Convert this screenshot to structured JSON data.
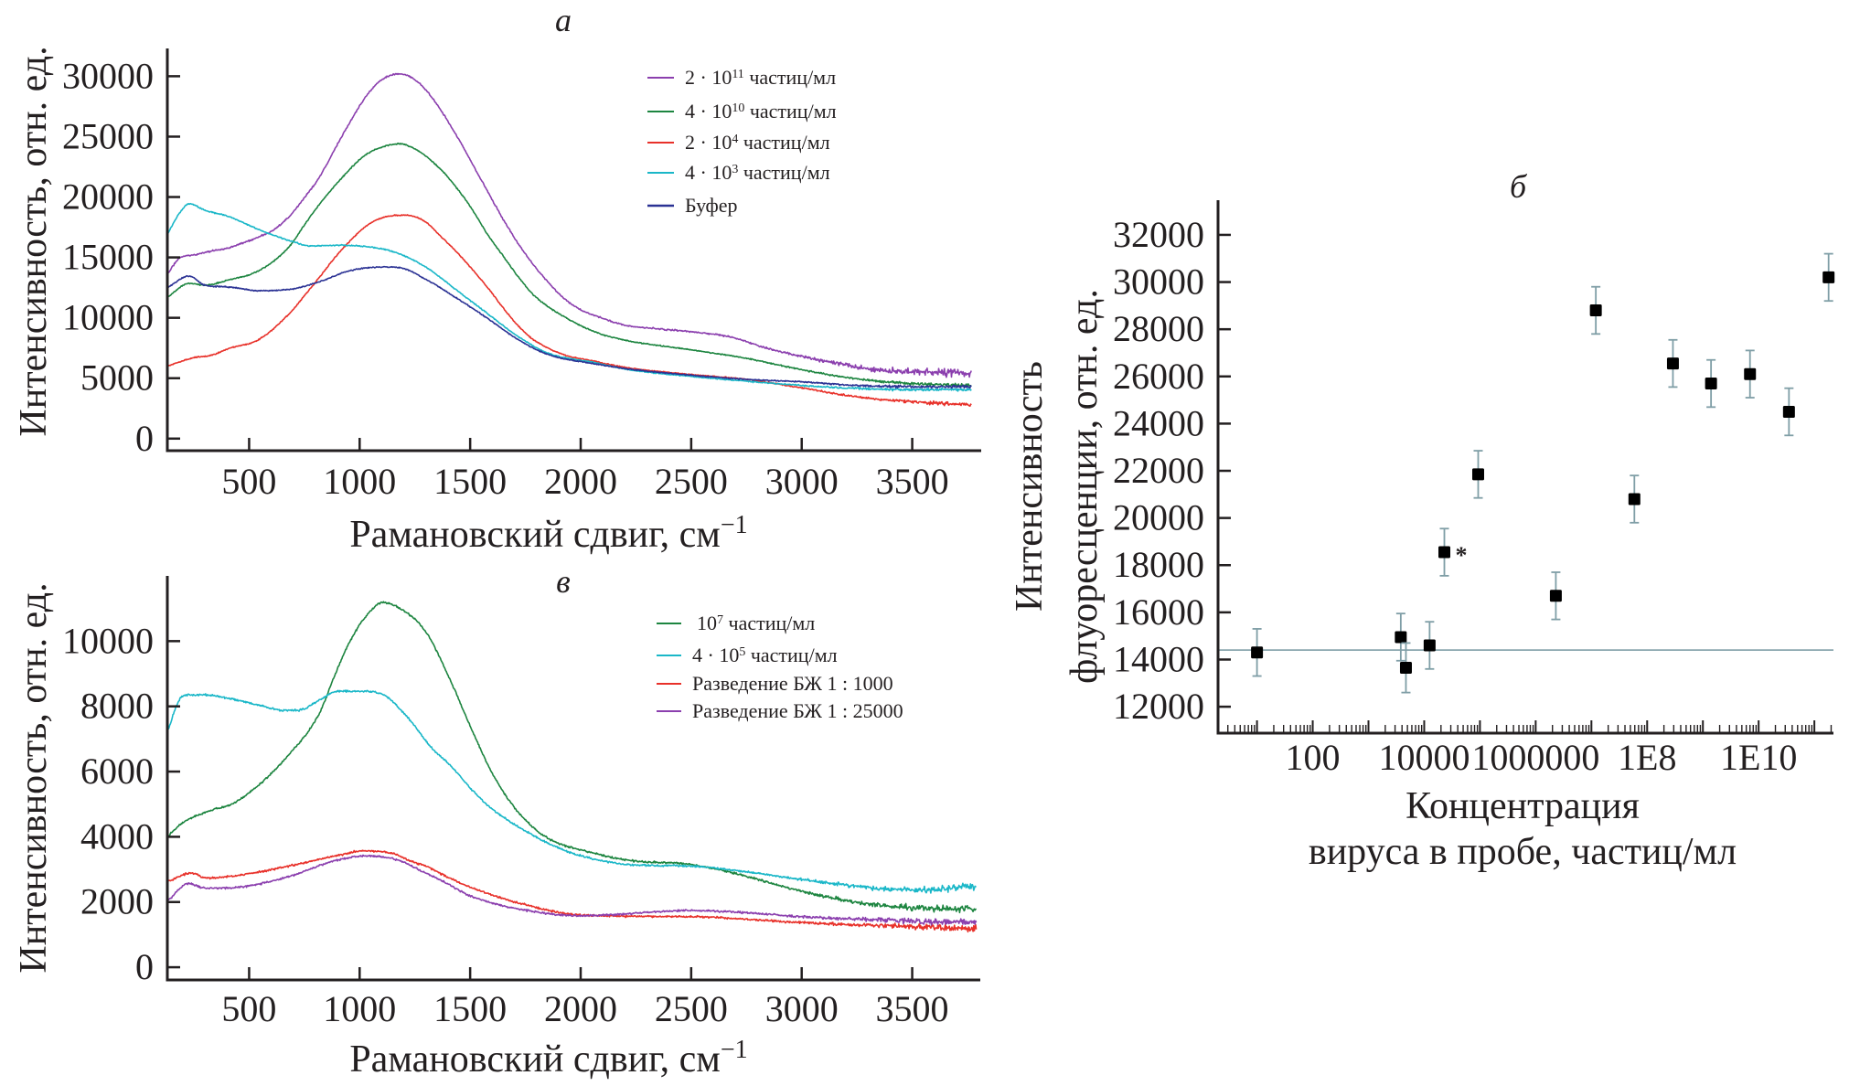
{
  "chart_data": [
    {
      "panel": "а",
      "type": "line",
      "title": "а",
      "xlabel": "Рамановский сдвиг, см",
      "xlabel_superscript": "−1",
      "ylabel": "Интенсивность, отн. ед.",
      "xlim": [
        130,
        3812
      ],
      "ylim": [
        -1000,
        32300
      ],
      "xticks": [
        500,
        1000,
        1500,
        2000,
        2500,
        3000,
        3500
      ],
      "yticks": [
        0,
        5000,
        10000,
        15000,
        20000,
        25000,
        30000
      ],
      "grid": false,
      "legend_position": "top-right",
      "series": [
        {
          "name": "2 · 10¹¹ частиц/мл",
          "legend": {
            "base": "2 · 10",
            "sup": "11",
            "suffix": " частиц/мл"
          },
          "color": "#8b3fae",
          "x": [
            130,
            190,
            250,
            320,
            406,
            544,
            613,
            682,
            751,
            820,
            889,
            958,
            1027,
            1096,
            1180,
            1262,
            1345,
            1441,
            1510,
            1579,
            1648,
            1717,
            1786,
            1855,
            1924,
            1993,
            2062,
            2200,
            2340,
            2500,
            2680,
            2820,
            3000,
            3170,
            3300,
            3500,
            3770
          ],
          "y": [
            13600,
            15000,
            15200,
            15500,
            15800,
            16700,
            17300,
            18400,
            19950,
            21700,
            24000,
            26250,
            28300,
            29650,
            30200,
            29550,
            27800,
            25000,
            22750,
            20450,
            18200,
            16150,
            14400,
            12900,
            11600,
            10750,
            10200,
            9400,
            9100,
            8850,
            8400,
            7600,
            6800,
            6200,
            5750,
            5550,
            5450
          ]
        },
        {
          "name": "4 · 10¹⁰ частиц/мл",
          "legend": {
            "base": "4 · 10",
            "sup": "10",
            "suffix": " частиц/мл"
          },
          "color": "#1d8540",
          "x": [
            130,
            230,
            300,
            406,
            544,
            682,
            751,
            820,
            889,
            958,
            1027,
            1096,
            1180,
            1262,
            1372,
            1441,
            1510,
            1579,
            1648,
            1717,
            1786,
            1924,
            2062,
            2200,
            2500,
            2750,
            3000,
            3250,
            3500,
            3770
          ],
          "y": [
            11700,
            12850,
            12700,
            13130,
            13900,
            15900,
            17700,
            19450,
            20950,
            22350,
            23500,
            24100,
            24400,
            23850,
            22200,
            20700,
            18950,
            16900,
            15150,
            13400,
            11900,
            10100,
            8850,
            8150,
            7350,
            6650,
            5700,
            4950,
            4550,
            4400
          ]
        },
        {
          "name": "2 · 10⁴ частиц/мл",
          "legend": {
            "base": "2 · 10",
            "sup": "4",
            "suffix": " частиц/мл"
          },
          "color": "#e8312a",
          "x": [
            130,
            250,
            330,
            406,
            544,
            682,
            751,
            820,
            889,
            958,
            1027,
            1096,
            1207,
            1289,
            1372,
            1441,
            1510,
            1579,
            1648,
            1717,
            1786,
            1924,
            2062,
            2200,
            2500,
            2750,
            3000,
            3250,
            3500,
            3770
          ],
          "y": [
            6000,
            6700,
            6900,
            7450,
            8200,
            10350,
            11850,
            13400,
            15000,
            16400,
            17550,
            18250,
            18500,
            18050,
            16650,
            15400,
            14000,
            12500,
            10850,
            9350,
            8200,
            6950,
            6400,
            5900,
            5300,
            4900,
            4200,
            3450,
            3050,
            2800
          ]
        },
        {
          "name": "4 · 10³ частиц/мл",
          "legend": {
            "base": "4 · 10",
            "sup": "3",
            "suffix": " частиц/мл"
          },
          "color": "#1ab7c8",
          "x": [
            130,
            190,
            230,
            300,
            406,
            544,
            682,
            779,
            889,
            1027,
            1165,
            1303,
            1441,
            1579,
            1717,
            1855,
            2062,
            2200,
            2500,
            2750,
            3000,
            3250,
            3500,
            3770
          ],
          "y": [
            16900,
            18800,
            19450,
            18900,
            18400,
            17300,
            16400,
            15950,
            16000,
            15900,
            15400,
            14150,
            12250,
            10350,
            8450,
            7050,
            6300,
            5750,
            5150,
            4750,
            4400,
            4150,
            4050,
            4050
          ]
        },
        {
          "name": "Буфер",
          "legend": {
            "base": "Буфер",
            "sup": "",
            "suffix": ""
          },
          "color": "#2b3294",
          "x": [
            130,
            229,
            300,
            406,
            544,
            682,
            820,
            958,
            1096,
            1179,
            1303,
            1441,
            1579,
            1717,
            1855,
            2062,
            2200,
            2500,
            2750,
            3000,
            3250,
            3500,
            3770
          ],
          "y": [
            12500,
            13450,
            12700,
            12550,
            12250,
            12350,
            13000,
            13900,
            14200,
            14150,
            13150,
            11600,
            9950,
            8200,
            6950,
            6200,
            5800,
            5250,
            4900,
            4700,
            4400,
            4300,
            4300
          ]
        }
      ]
    },
    {
      "panel": "б",
      "type": "scatter",
      "title": "б",
      "xlabel_lines": [
        "Концентрация",
        "вируса в пробе, частиц/мл"
      ],
      "ylabel_lines": [
        "Интенсивность",
        "флуоресценции, отн. ед."
      ],
      "xscale": "log",
      "xlim": [
        2,
        220000000000
      ],
      "ylim": [
        10880,
        33470
      ],
      "xticks": [
        100,
        10000,
        1000000,
        100000000,
        10000000000
      ],
      "xtick_labels": [
        "100",
        "10000",
        "1000000",
        "1E8",
        "1E10"
      ],
      "yticks": [
        12000,
        14000,
        16000,
        18000,
        20000,
        22000,
        24000,
        26000,
        28000,
        30000,
        32000
      ],
      "grid": false,
      "reference_line_y": 14400,
      "marker_color": "#000000",
      "errorbar_color": "#7f9ea6",
      "reference_line_color": "#8aa6ae",
      "points": [
        {
          "x": 10,
          "y": 14300,
          "err": 1000
        },
        {
          "x": 3800,
          "y": 14950,
          "err": 1000
        },
        {
          "x": 4700,
          "y": 13650,
          "err": 1050
        },
        {
          "x": 12500,
          "y": 14600,
          "err": 1000
        },
        {
          "x": 23000,
          "y": 18550,
          "err": 1000,
          "annotation": "*"
        },
        {
          "x": 93000,
          "y": 21850,
          "err": 1000
        },
        {
          "x": 2300000,
          "y": 16700,
          "err": 1000
        },
        {
          "x": 12000000,
          "y": 28800,
          "err": 1000
        },
        {
          "x": 59000000,
          "y": 20800,
          "err": 1000
        },
        {
          "x": 290000000,
          "y": 26550,
          "err": 1000
        },
        {
          "x": 1400000000,
          "y": 25700,
          "err": 1000
        },
        {
          "x": 7000000000,
          "y": 26100,
          "err": 1000
        },
        {
          "x": 35000000000,
          "y": 24500,
          "err": 1000
        },
        {
          "x": 180000000000,
          "y": 30200,
          "err": 1000
        }
      ]
    },
    {
      "panel": "в",
      "type": "line",
      "title": "в",
      "xlabel": "Рамановский сдвиг, см",
      "xlabel_superscript": "−1",
      "ylabel": "Интенсивность, отн. ед.",
      "xlim": [
        130,
        3808
      ],
      "ylim": [
        -390,
        12000
      ],
      "xticks": [
        500,
        1000,
        1500,
        2000,
        2500,
        3000,
        3500
      ],
      "yticks": [
        0,
        2000,
        4000,
        6000,
        8000,
        10000
      ],
      "grid": false,
      "legend_position": "top-right",
      "series": [
        {
          "name": "10⁷ частиц/мл",
          "legend": {
            "base": "10",
            "sup": "7",
            "suffix": " частиц/мл"
          },
          "color": "#1d8540",
          "x": [
            135,
            196,
            335,
            417,
            541,
            679,
            817,
            886,
            955,
            1023,
            1106,
            1161,
            1299,
            1409,
            1500,
            1600,
            1700,
            1800,
            1888,
            2000,
            2216,
            2500,
            2708,
            3000,
            3282,
            3500,
            3790
          ],
          "y": [
            4040,
            4410,
            4830,
            4990,
            5570,
            6510,
            7770,
            8930,
            9980,
            10710,
            11190,
            11080,
            10290,
            8820,
            7400,
            5950,
            4900,
            4200,
            3830,
            3600,
            3280,
            3150,
            2860,
            2330,
            1960,
            1830,
            1780
          ]
        },
        {
          "name": "4 · 10⁵ частиц/мл",
          "legend": {
            "base": "4 · 10",
            "sup": "5",
            "suffix": " частиц/мл"
          },
          "color": "#1ab7c8",
          "x": [
            135,
            183,
            225,
            307,
            404,
            541,
            652,
            720,
            817,
            900,
            1023,
            1120,
            1230,
            1326,
            1409,
            1500,
            1600,
            1725,
            1888,
            2000,
            2216,
            2500,
            2708,
            3000,
            3282,
            3500,
            3790
          ],
          "y": [
            7300,
            8190,
            8350,
            8350,
            8250,
            8040,
            7880,
            7880,
            8190,
            8460,
            8460,
            8300,
            7560,
            6720,
            6200,
            5500,
            4850,
            4280,
            3690,
            3420,
            3150,
            3100,
            2960,
            2690,
            2460,
            2370,
            2460
          ]
        },
        {
          "name": "Разведение БЖ 1 : 1000",
          "legend": {
            "base": "Разведение БЖ 1 : 1000",
            "sup": "",
            "suffix": ""
          },
          "color": "#e8312a",
          "x": [
            135,
            238,
            307,
            472,
            679,
            886,
            1023,
            1161,
            1233,
            1299,
            1409,
            1500,
            1725,
            2000,
            2500,
            3000,
            3500,
            3790
          ],
          "y": [
            2630,
            2890,
            2730,
            2840,
            3100,
            3410,
            3570,
            3470,
            3250,
            3100,
            2730,
            2460,
            1960,
            1600,
            1550,
            1370,
            1240,
            1190
          ]
        },
        {
          "name": "Разведение БЖ 1 : 25000",
          "legend": {
            "base": "Разведение БЖ 1 : 25000",
            "sup": "",
            "suffix": ""
          },
          "color": "#8b3fae",
          "x": [
            135,
            225,
            307,
            472,
            679,
            886,
            1023,
            1161,
            1299,
            1409,
            1500,
            1725,
            2000,
            2500,
            2708,
            3000,
            3500,
            3790
          ],
          "y": [
            2050,
            2570,
            2420,
            2470,
            2780,
            3260,
            3410,
            3310,
            2890,
            2520,
            2190,
            1780,
            1580,
            1740,
            1690,
            1550,
            1420,
            1370
          ]
        }
      ]
    }
  ]
}
